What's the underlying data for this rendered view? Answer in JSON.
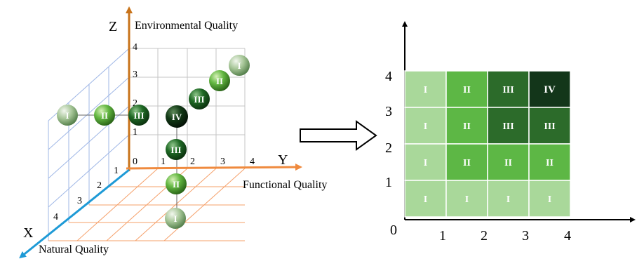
{
  "left": {
    "axis_z": {
      "letter": "Z",
      "name": "Environmental Quality"
    },
    "axis_y": {
      "letter": "Y",
      "name": "Functional Quality"
    },
    "axis_x": {
      "letter": "X",
      "name": "Natural Quality"
    },
    "origin_label": "0",
    "z_ticks": [
      "1",
      "2",
      "3",
      "4"
    ],
    "y_ticks": [
      "1",
      "2",
      "3",
      "4"
    ],
    "x_ticks": [
      "1",
      "2",
      "3",
      "4"
    ],
    "spheres_x": [
      "I",
      "II",
      "III"
    ],
    "spheres_diag": [
      "IV",
      "III",
      "II",
      "I"
    ],
    "spheres_down": [
      "III",
      "II",
      "I"
    ],
    "colors": {
      "z_axis": "#c8731a",
      "y_axis": "#ef8a3e",
      "x_axis": "#1e9ad6",
      "wall": "#9fb7e6",
      "floor": "#f5a06a",
      "grid": "#bdbdbd"
    }
  },
  "right": {
    "origin": "0",
    "x_ticks": [
      "1",
      "2",
      "3",
      "4"
    ],
    "y_ticks": [
      "1",
      "2",
      "3",
      "4"
    ],
    "rows": [
      [
        "I",
        "II",
        "III",
        "IV"
      ],
      [
        "I",
        "II",
        "III",
        "III"
      ],
      [
        "I",
        "II",
        "II",
        "II"
      ],
      [
        "I",
        "I",
        "I",
        "I"
      ]
    ],
    "level_colors": {
      "I": "#a9d89a",
      "II": "#5db745",
      "III": "#2c6b2a",
      "IV": "#13361a"
    }
  }
}
